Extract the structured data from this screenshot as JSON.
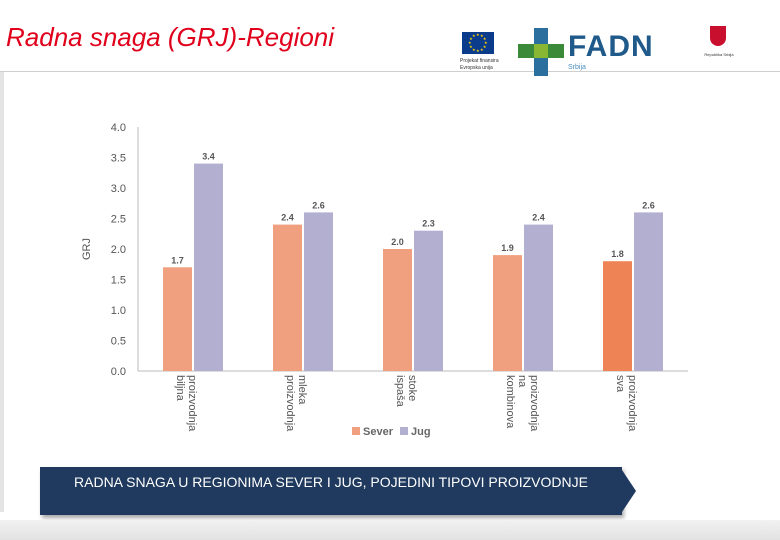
{
  "slide": {
    "title": "Radna snaga (GRJ)-Regioni",
    "caption": "RADNA SNAGA U REGIONIMA SEVER I JUG, POJEDINI TIPOVI PROIZVODNJE"
  },
  "logos": {
    "eu": {
      "text": "Projekat finansira Evropska unija"
    },
    "fadn": {
      "name": "FADN",
      "sub": "Srbija",
      "tagline": "Informacioni sistem"
    },
    "coat": {
      "text": "Republika Srbija"
    }
  },
  "colors": {
    "sever": "#f0a07f",
    "jug": "#b3afd1",
    "accent_bar": "#ee8356",
    "title": "#e0001b",
    "caption_bg": "#1f3a5e"
  },
  "chart_data": {
    "type": "bar",
    "title": "",
    "xlabel": "",
    "ylabel": "GRJ",
    "ylim": [
      0,
      4.0
    ],
    "yticks": [
      "0.0",
      "0.5",
      "1.0",
      "1.5",
      "2.0",
      "2.5",
      "3.0",
      "3.5",
      "4.0"
    ],
    "categories": [
      [
        "biljna",
        "proizvodnja"
      ],
      [
        "proizvodnja",
        "mleka"
      ],
      [
        "ispaša",
        "stoke"
      ],
      [
        "kombinova",
        "na",
        "proizvodnja"
      ],
      [
        "sva",
        "proizvodnja"
      ]
    ],
    "series": [
      {
        "name": "Sever",
        "values": [
          1.7,
          2.4,
          2.0,
          1.9,
          1.8
        ],
        "labels": [
          "1.7",
          "2.4",
          "2.0",
          "1.9",
          "1.8"
        ]
      },
      {
        "name": "Jug",
        "values": [
          3.4,
          2.6,
          2.3,
          2.4,
          2.6
        ],
        "labels": [
          "3.4",
          "2.6",
          "2.3",
          "2.4",
          "2.6"
        ]
      }
    ],
    "legend": "bottom",
    "grid": false
  }
}
